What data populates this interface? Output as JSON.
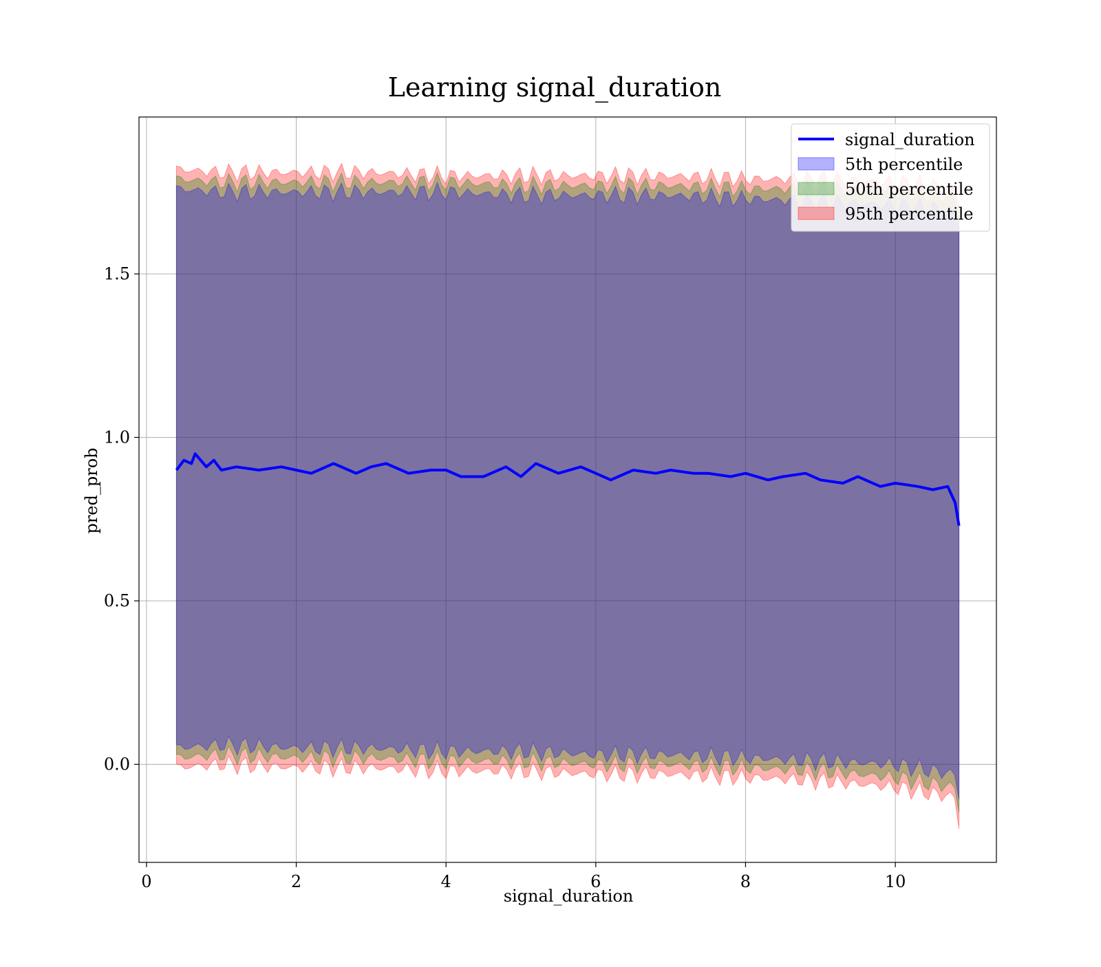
{
  "chart_data": {
    "type": "area",
    "title": "Learning signal_duration",
    "xlabel": "signal_duration",
    "ylabel": "pred_prob",
    "xlim": [
      -0.1,
      11.35
    ],
    "ylim": [
      -0.3,
      1.98
    ],
    "x_ticks": [
      0,
      2,
      4,
      6,
      8,
      10
    ],
    "y_ticks": [
      0.0,
      0.5,
      1.0,
      1.5
    ],
    "x_tick_labels": [
      "0",
      "2",
      "4",
      "6",
      "8",
      "10"
    ],
    "y_tick_labels": [
      "0.0",
      "0.5",
      "1.0",
      "1.5"
    ],
    "grid": true,
    "legend_position": "top-right",
    "x_range": [
      0.4,
      10.85
    ],
    "colors": {
      "line": "#0000ff",
      "band_5": "#0000ff",
      "band_50": "#008000",
      "band_95": "#ff0000"
    },
    "line_series": {
      "name": "signal_duration",
      "x": [
        0.4,
        0.5,
        0.6,
        0.65,
        0.8,
        0.9,
        1.0,
        1.2,
        1.5,
        1.8,
        2.0,
        2.2,
        2.5,
        2.8,
        3.0,
        3.2,
        3.5,
        3.8,
        4.0,
        4.2,
        4.5,
        4.8,
        5.0,
        5.2,
        5.5,
        5.8,
        6.0,
        6.2,
        6.5,
        6.8,
        7.0,
        7.3,
        7.5,
        7.8,
        8.0,
        8.3,
        8.5,
        8.8,
        9.0,
        9.3,
        9.5,
        9.8,
        10.0,
        10.3,
        10.5,
        10.7,
        10.8,
        10.85
      ],
      "y": [
        0.9,
        0.93,
        0.92,
        0.95,
        0.91,
        0.93,
        0.9,
        0.91,
        0.9,
        0.91,
        0.9,
        0.89,
        0.92,
        0.89,
        0.91,
        0.92,
        0.89,
        0.9,
        0.9,
        0.88,
        0.88,
        0.91,
        0.88,
        0.92,
        0.89,
        0.91,
        0.89,
        0.87,
        0.9,
        0.89,
        0.9,
        0.89,
        0.89,
        0.88,
        0.89,
        0.87,
        0.88,
        0.89,
        0.87,
        0.86,
        0.88,
        0.85,
        0.86,
        0.85,
        0.84,
        0.85,
        0.8,
        0.73
      ]
    },
    "bands": [
      {
        "name": "5th percentile",
        "x": [
          0.4,
          1.0,
          2.0,
          3.0,
          4.0,
          5.0,
          6.0,
          7.0,
          8.0,
          9.0,
          10.0,
          10.5,
          10.8,
          10.85
        ],
        "upper": [
          1.76,
          1.75,
          1.75,
          1.75,
          1.75,
          1.74,
          1.74,
          1.74,
          1.73,
          1.72,
          1.71,
          1.7,
          1.69,
          1.65
        ],
        "lower": [
          0.05,
          0.06,
          0.05,
          0.05,
          0.04,
          0.04,
          0.03,
          0.03,
          0.02,
          0.01,
          0.0,
          -0.02,
          -0.03,
          -0.1
        ]
      },
      {
        "name": "50th percentile",
        "x": [
          0.4,
          1.0,
          2.0,
          3.0,
          4.0,
          5.0,
          6.0,
          7.0,
          8.0,
          9.0,
          10.0,
          10.5,
          10.8,
          10.85
        ],
        "upper": [
          1.79,
          1.78,
          1.78,
          1.78,
          1.78,
          1.77,
          1.77,
          1.77,
          1.76,
          1.76,
          1.75,
          1.74,
          1.73,
          1.68
        ],
        "lower": [
          0.02,
          0.03,
          0.02,
          0.02,
          0.01,
          0.01,
          0.0,
          0.0,
          -0.01,
          -0.02,
          -0.04,
          -0.06,
          -0.07,
          -0.14
        ]
      },
      {
        "name": "95th percentile",
        "x": [
          0.4,
          1.0,
          2.0,
          3.0,
          4.0,
          5.0,
          6.0,
          7.0,
          8.0,
          9.0,
          10.0,
          10.5,
          10.8,
          10.85
        ],
        "upper": [
          1.82,
          1.81,
          1.81,
          1.81,
          1.8,
          1.8,
          1.8,
          1.8,
          1.79,
          1.79,
          1.78,
          1.77,
          1.76,
          1.72
        ],
        "lower": [
          -0.01,
          0.0,
          -0.01,
          -0.01,
          -0.02,
          -0.02,
          -0.03,
          -0.03,
          -0.04,
          -0.05,
          -0.07,
          -0.09,
          -0.1,
          -0.19
        ]
      }
    ],
    "legend": [
      {
        "label": "signal_duration",
        "kind": "line"
      },
      {
        "label": "5th percentile",
        "kind": "band"
      },
      {
        "label": "50th percentile",
        "kind": "band"
      },
      {
        "label": "95th percentile",
        "kind": "band"
      }
    ]
  }
}
